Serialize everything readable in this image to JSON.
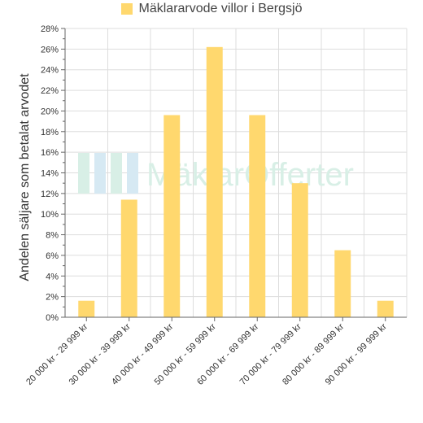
{
  "chart_data": {
    "type": "bar",
    "legend": "Mäklararvode villor i Bergsjö",
    "ylabel": "Andelen säljare som betalat arvodet",
    "categories": [
      "20 000 kr - 29 999 kr",
      "30 000 kr - 39 999 kr",
      "40 000 kr - 49 999 kr",
      "50 000 kr - 59 999 kr",
      "60 000 kr - 69 999 kr",
      "70 000 kr - 79 999 kr",
      "80 000 kr - 89 999 kr",
      "90 000 kr - 99 999 kr"
    ],
    "values": [
      1.6,
      11.4,
      19.6,
      26.2,
      19.6,
      13.0,
      6.5,
      1.6
    ],
    "ylim": [
      0,
      28
    ],
    "yticks": [
      "0%",
      "2%",
      "4%",
      "6%",
      "8%",
      "10%",
      "12%",
      "14%",
      "16%",
      "18%",
      "20%",
      "22%",
      "24%",
      "26%",
      "28%"
    ],
    "grid": true,
    "legend_position": "top-center",
    "bar_color": "#ffd86e",
    "watermark": "MäklarOfferter"
  }
}
